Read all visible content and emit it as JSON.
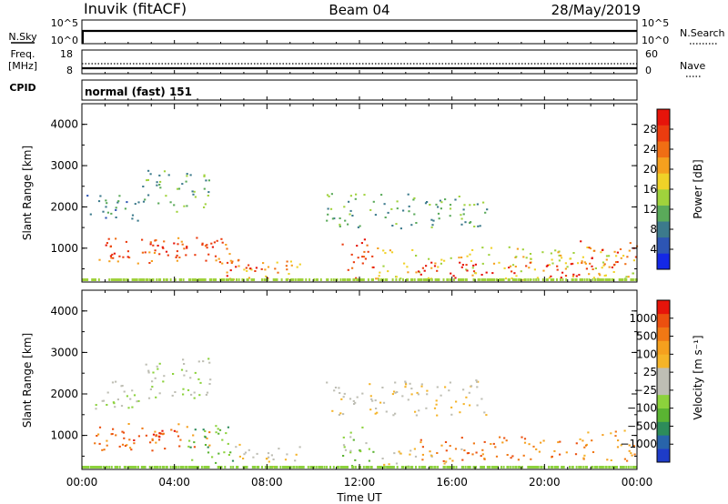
{
  "header": {
    "station": "Inuvik (fitACF)",
    "beam": "Beam 04",
    "date": "28/May/2019"
  },
  "strips": {
    "nsky_label": "N.Sky",
    "nsky_ticks": [
      "10^5",
      "10^0"
    ],
    "nsearch_label": "N.Search",
    "nsearch_ticks": [
      "10^5",
      "10^0"
    ],
    "freq_label": "Freq.",
    "freq_unit": "[MHz]",
    "freq_ticks": [
      "18",
      "8"
    ],
    "nave_label": "Nave",
    "nave_ticks": [
      "60",
      "0"
    ],
    "cpid_label": "CPID",
    "cpid_value": "normal (fast) 151"
  },
  "chart_data": [
    {
      "type": "heatmap",
      "title": "",
      "xlabel": "Time UT",
      "ylabel": "Slant Range [km]",
      "x_ticks": [
        "00:00",
        "04:00",
        "08:00",
        "12:00",
        "16:00",
        "20:00",
        "00:00"
      ],
      "xlim_hours": [
        0,
        24
      ],
      "y_ticks": [
        1000,
        2000,
        3000,
        4000
      ],
      "ylim_km": [
        180,
        4500
      ],
      "colorbar": {
        "label": "Power [dB]",
        "ticks": [
          "4",
          "8",
          "12",
          "16",
          "20",
          "24",
          "28"
        ],
        "colors": [
          "#1428e6",
          "#2d55b4",
          "#3c7a8c",
          "#5aaa5a",
          "#a0d23c",
          "#f0d228",
          "#f5a01e",
          "#f06e14",
          "#eb3c0f",
          "#e6140a"
        ]
      },
      "regions": [
        {
          "x0": 0.2,
          "x1": 2.6,
          "y0": 1650,
          "y1": 2350,
          "level": 2
        },
        {
          "x0": 2.6,
          "x1": 5.6,
          "y0": 1900,
          "y1": 2900,
          "level": 3
        },
        {
          "x0": 0.5,
          "x1": 6.5,
          "y0": 650,
          "y1": 1300,
          "level": 7
        },
        {
          "x0": 1.0,
          "x1": 5.8,
          "y0": 800,
          "y1": 1150,
          "level": 9
        },
        {
          "x0": 5.8,
          "x1": 9.5,
          "y0": 250,
          "y1": 800,
          "level": 6
        },
        {
          "x0": 6.0,
          "x1": 8.0,
          "y0": 280,
          "y1": 620,
          "level": 9
        },
        {
          "x0": 11.2,
          "x1": 12.6,
          "y0": 250,
          "y1": 1250,
          "level": 8
        },
        {
          "x0": 10.5,
          "x1": 17.5,
          "y0": 1500,
          "y1": 2350,
          "level": 3
        },
        {
          "x0": 12.6,
          "x1": 24.0,
          "y0": 250,
          "y1": 1050,
          "level": 5
        },
        {
          "x0": 14.5,
          "x1": 21.5,
          "y0": 300,
          "y1": 700,
          "level": 9
        },
        {
          "x0": 21.5,
          "x1": 24.0,
          "y0": 500,
          "y1": 1200,
          "level": 8
        }
      ]
    },
    {
      "type": "heatmap",
      "title": "",
      "xlabel": "Time UT",
      "ylabel": "Slant Range [km]",
      "x_ticks": [
        "00:00",
        "04:00",
        "08:00",
        "12:00",
        "16:00",
        "20:00",
        "00:00"
      ],
      "xlim_hours": [
        0,
        24
      ],
      "y_ticks": [
        1000,
        2000,
        3000,
        4000
      ],
      "ylim_km": [
        180,
        4500
      ],
      "colorbar": {
        "label": "Velocity [m s⁻¹]",
        "ticks": [
          "1000",
          "500",
          "100",
          "25",
          "−25",
          "−100",
          "−500",
          "−1000"
        ],
        "colors": [
          "#1e3cc8",
          "#2864aa",
          "#2d8c5a",
          "#5ab432",
          "#8cd23c",
          "#bebeb4",
          "#bebeb4",
          "#f5b428",
          "#f5a01e",
          "#f07814",
          "#eb500f",
          "#e6140a"
        ]
      },
      "regions": [
        {
          "x0": 0.2,
          "x1": 2.6,
          "y0": 1650,
          "y1": 2350,
          "level": 5
        },
        {
          "x0": 2.6,
          "x1": 5.6,
          "y0": 1900,
          "y1": 2900,
          "level": 5
        },
        {
          "x0": 0.5,
          "x1": 5.5,
          "y0": 650,
          "y1": 1300,
          "level": 9
        },
        {
          "x0": 1.0,
          "x1": 4.5,
          "y0": 850,
          "y1": 1150,
          "level": 10
        },
        {
          "x0": 4.5,
          "x1": 6.5,
          "y0": 300,
          "y1": 1300,
          "level": 3
        },
        {
          "x0": 6.5,
          "x1": 9.5,
          "y0": 250,
          "y1": 800,
          "level": 6
        },
        {
          "x0": 11.2,
          "x1": 12.6,
          "y0": 250,
          "y1": 1250,
          "level": 4
        },
        {
          "x0": 10.5,
          "x1": 17.5,
          "y0": 1500,
          "y1": 2350,
          "level": 6
        },
        {
          "x0": 12.6,
          "x1": 16.5,
          "y0": 250,
          "y1": 700,
          "level": 6
        },
        {
          "x0": 14.5,
          "x1": 21.5,
          "y0": 400,
          "y1": 1000,
          "level": 9
        },
        {
          "x0": 21.5,
          "x1": 24.0,
          "y0": 400,
          "y1": 1200,
          "level": 8
        }
      ]
    }
  ]
}
